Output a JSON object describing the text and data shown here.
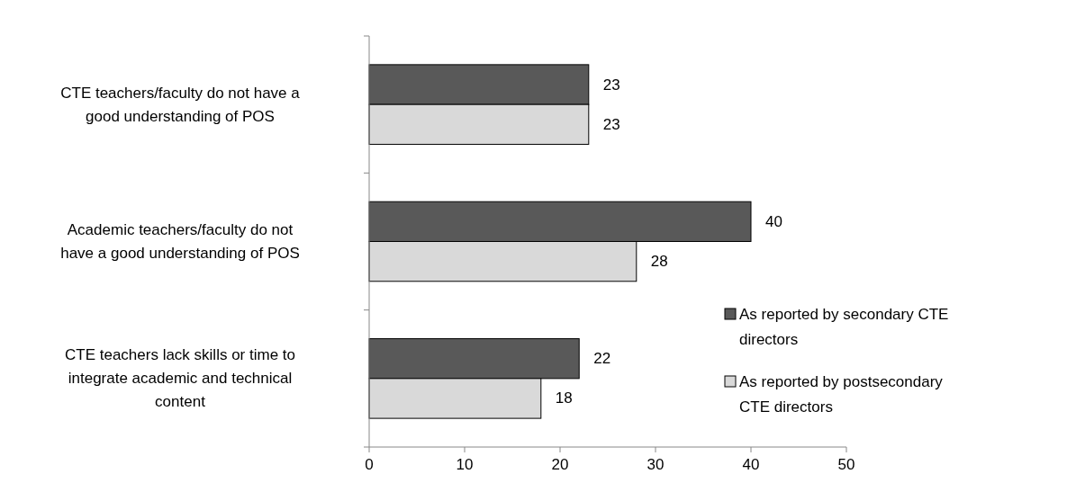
{
  "chart_data": {
    "type": "bar",
    "orientation": "horizontal",
    "categories": [
      "CTE teachers/faculty do not have a good understanding of POS",
      "Academic teachers/faculty do not have a good understanding of POS",
      "CTE teachers lack skills or time to integrate academic and technical content"
    ],
    "series": [
      {
        "name": "As reported by secondary CTE directors",
        "color": "#595959",
        "values": [
          23,
          40,
          22
        ]
      },
      {
        "name": "As reported by postsecondary CTE directors",
        "color": "#d9d9d9",
        "values": [
          23,
          28,
          18
        ]
      }
    ],
    "xlim": [
      0,
      50
    ],
    "xticks": [
      0,
      10,
      20,
      30,
      40,
      50
    ],
    "data_labels": true,
    "legend": "bottom right",
    "grid": false
  }
}
